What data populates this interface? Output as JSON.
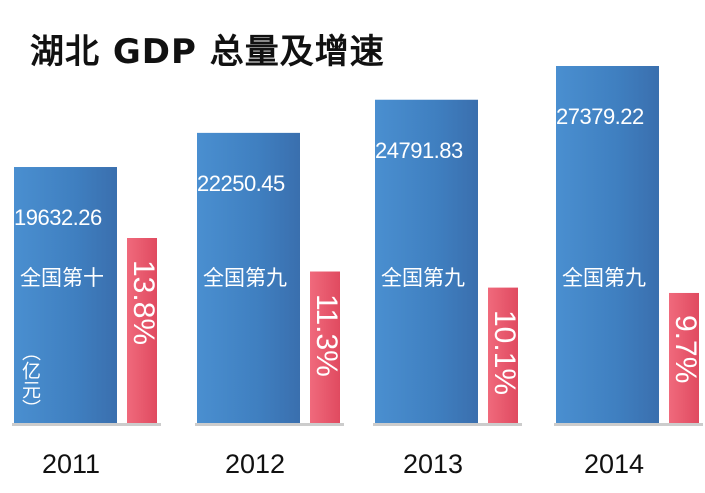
{
  "chart_data": {
    "type": "bar",
    "title": "湖北 GDP 总量及增速",
    "categories": [
      "2011",
      "2012",
      "2013",
      "2014"
    ],
    "unit": "（亿元）",
    "series": [
      {
        "values": [
          19632.26,
          22250.45,
          24791.83,
          27379.22
        ]
      },
      {
        "values": [
          13.8,
          11.3,
          10.1,
          9.7
        ]
      }
    ],
    "value_labels": [
      "19632.26",
      "22250.45",
      "24791.83",
      "27379.22"
    ],
    "growth_labels": [
      "13.8%",
      "11.3%",
      "10.1%",
      "9.7%"
    ],
    "rank_labels": [
      "全国第十",
      "全国第九",
      "全国第九",
      "全国第九"
    ],
    "colors": {
      "gdp_bar": "#3f7fc0",
      "growth_bar": "#e85367",
      "baseline": "#cccccc"
    }
  }
}
